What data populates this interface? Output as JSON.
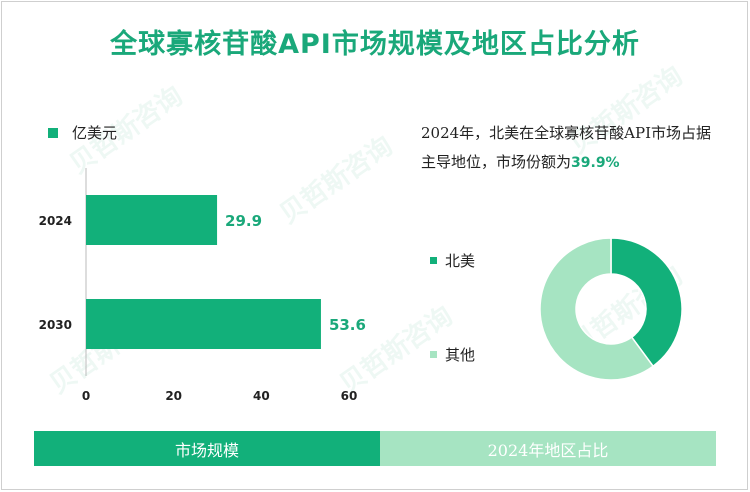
{
  "title": "全球寡核苷酸API市场规模及地区占比分析",
  "legend_unit": "亿美元",
  "description": {
    "text": "2024年，北美在全球寡核苷酸API市场占据主导地位，市场份额为",
    "percent": "39.9%"
  },
  "watermark": "贝哲斯咨询",
  "footer": {
    "left": "市场规模",
    "right": "2024年地区占比"
  },
  "colors": {
    "primary": "#12b07a",
    "secondary": "#a6e4c2",
    "title": "#1aa87a"
  },
  "chart_data": [
    {
      "type": "bar",
      "orientation": "horizontal",
      "categories": [
        "2024",
        "2030"
      ],
      "values": [
        29.9,
        53.6
      ],
      "value_labels": [
        "29.9",
        "53.6"
      ],
      "xlim": [
        0,
        60
      ],
      "xticks": [
        "0",
        "20",
        "40",
        "60"
      ]
    },
    {
      "type": "pie",
      "style": "donut",
      "labels": [
        "北美",
        "其他"
      ],
      "values": [
        39.9,
        60.1
      ],
      "colors": [
        "#12b07a",
        "#a6e4c2"
      ]
    }
  ]
}
